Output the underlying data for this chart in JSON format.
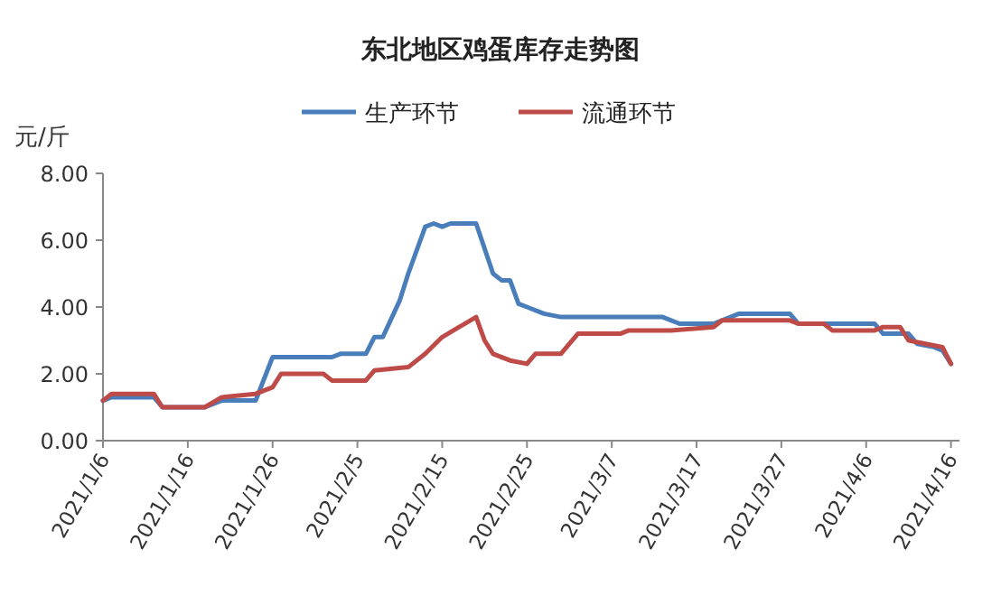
{
  "chart_data": {
    "type": "line",
    "title": "东北地区鸡蛋库存走势图",
    "ylabel": "元/斤",
    "xlim": [
      "2021-01-06",
      "2021-04-17"
    ],
    "xticks": [
      {
        "value": "2021-01-06",
        "label": "2021/1/6"
      },
      {
        "value": "2021-01-16",
        "label": "2021/1/16"
      },
      {
        "value": "2021-01-26",
        "label": "2021/1/26"
      },
      {
        "value": "2021-02-05",
        "label": "2021/2/5"
      },
      {
        "value": "2021-02-15",
        "label": "2021/2/15"
      },
      {
        "value": "2021-02-25",
        "label": "2021/2/25"
      },
      {
        "value": "2021-03-07",
        "label": "2021/3/7"
      },
      {
        "value": "2021-03-17",
        "label": "2021/3/17"
      },
      {
        "value": "2021-03-27",
        "label": "2021/3/27"
      },
      {
        "value": "2021-04-06",
        "label": "2021/4/6"
      },
      {
        "value": "2021-04-16",
        "label": "2021/4/16"
      }
    ],
    "ylim": [
      0,
      8
    ],
    "yticks": [
      {
        "value": 0,
        "label": "0.00"
      },
      {
        "value": 2,
        "label": "2.00"
      },
      {
        "value": 4,
        "label": "4.00"
      },
      {
        "value": 6,
        "label": "6.00"
      },
      {
        "value": 8,
        "label": "8.00"
      }
    ],
    "grid": false,
    "legend": "top",
    "marker": "none",
    "line_style": "solid",
    "series": [
      {
        "name": "生产环节",
        "color": "#4a7ebb",
        "x": [
          "2021-01-06",
          "2021-01-07",
          "2021-01-12",
          "2021-01-13",
          "2021-01-18",
          "2021-01-20",
          "2021-01-24",
          "2021-01-26",
          "2021-02-02",
          "2021-02-03",
          "2021-02-06",
          "2021-02-07",
          "2021-02-08",
          "2021-02-10",
          "2021-02-11",
          "2021-02-13",
          "2021-02-14",
          "2021-02-15",
          "2021-02-16",
          "2021-02-19",
          "2021-02-21",
          "2021-02-22",
          "2021-02-23",
          "2021-02-24",
          "2021-02-25",
          "2021-02-27",
          "2021-03-01",
          "2021-03-13",
          "2021-03-15",
          "2021-03-19",
          "2021-03-20",
          "2021-03-22",
          "2021-03-28",
          "2021-03-29",
          "2021-04-07",
          "2021-04-08",
          "2021-04-11",
          "2021-04-12",
          "2021-04-14",
          "2021-04-15",
          "2021-04-16"
        ],
        "values": [
          1.2,
          1.3,
          1.3,
          1.0,
          1.0,
          1.2,
          1.2,
          2.5,
          2.5,
          2.6,
          2.6,
          3.1,
          3.1,
          4.2,
          5.0,
          6.4,
          6.5,
          6.4,
          6.5,
          6.5,
          5.0,
          4.8,
          4.8,
          4.1,
          4.0,
          3.8,
          3.7,
          3.7,
          3.5,
          3.5,
          3.6,
          3.8,
          3.8,
          3.5,
          3.5,
          3.2,
          3.2,
          2.9,
          2.8,
          2.7,
          2.3
        ]
      },
      {
        "name": "流通环节",
        "color": "#be4b48",
        "x": [
          "2021-01-06",
          "2021-01-07",
          "2021-01-12",
          "2021-01-13",
          "2021-01-18",
          "2021-01-20",
          "2021-01-24",
          "2021-01-26",
          "2021-01-27",
          "2021-02-01",
          "2021-02-02",
          "2021-02-06",
          "2021-02-07",
          "2021-02-11",
          "2021-02-13",
          "2021-02-15",
          "2021-02-17",
          "2021-02-19",
          "2021-02-20",
          "2021-02-21",
          "2021-02-23",
          "2021-02-25",
          "2021-02-26",
          "2021-03-01",
          "2021-03-03",
          "2021-03-08",
          "2021-03-09",
          "2021-03-14",
          "2021-03-19",
          "2021-03-20",
          "2021-03-28",
          "2021-03-29",
          "2021-04-01",
          "2021-04-02",
          "2021-04-07",
          "2021-04-08",
          "2021-04-10",
          "2021-04-11",
          "2021-04-13",
          "2021-04-15",
          "2021-04-16"
        ],
        "values": [
          1.2,
          1.4,
          1.4,
          1.0,
          1.0,
          1.3,
          1.4,
          1.6,
          2.0,
          2.0,
          1.8,
          1.8,
          2.1,
          2.2,
          2.6,
          3.1,
          3.4,
          3.7,
          3.0,
          2.6,
          2.4,
          2.3,
          2.6,
          2.6,
          3.2,
          3.2,
          3.3,
          3.3,
          3.4,
          3.6,
          3.6,
          3.5,
          3.5,
          3.3,
          3.3,
          3.4,
          3.4,
          3.0,
          2.9,
          2.8,
          2.3
        ]
      }
    ]
  }
}
